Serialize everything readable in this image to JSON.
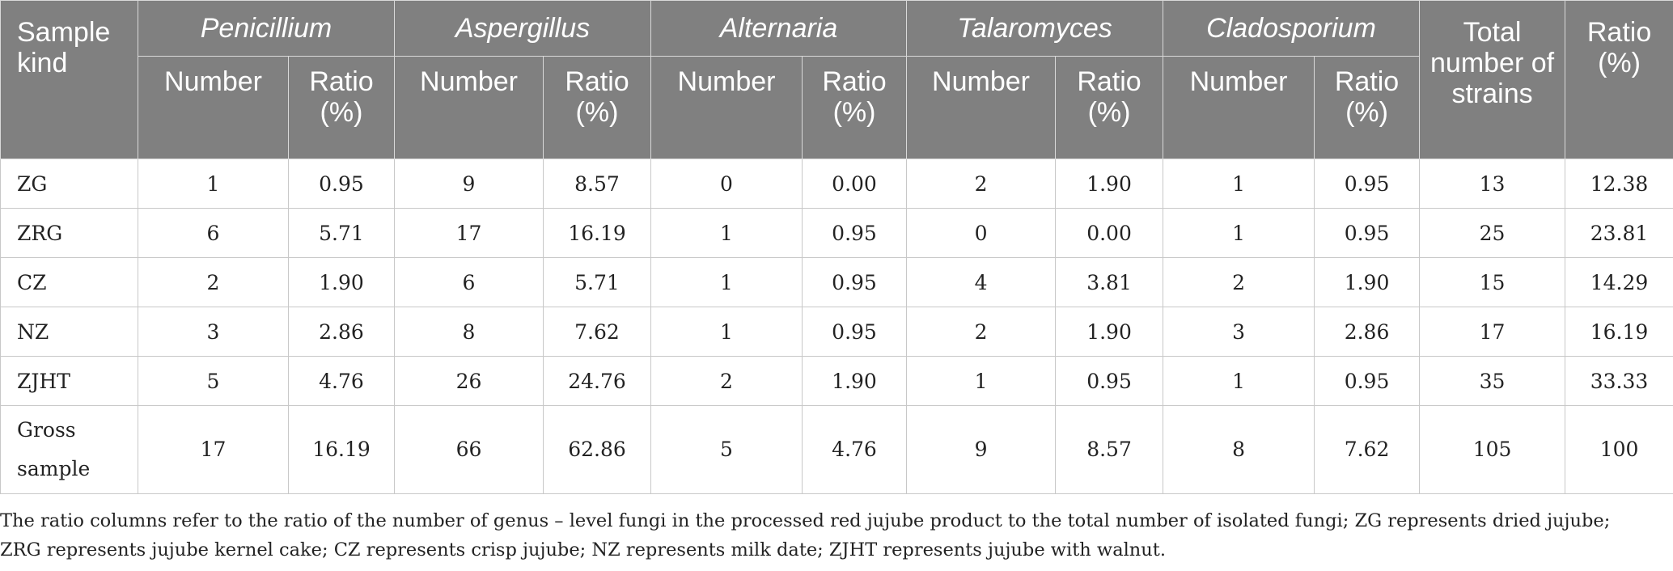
{
  "header": {
    "sample_kind": "Sample kind",
    "genera": [
      "Penicillium",
      "Aspergillus",
      "Alternaria",
      "Talaromyces",
      "Cladosporium"
    ],
    "sub_number": "Number",
    "sub_ratio": "Ratio (%)",
    "total_strains": "Total number of strains",
    "ratio": "Ratio (%)"
  },
  "rows": [
    {
      "kind": "ZG",
      "cells": [
        "1",
        "0.95",
        "9",
        "8.57",
        "0",
        "0.00",
        "2",
        "1.90",
        "1",
        "0.95",
        "13",
        "12.38"
      ]
    },
    {
      "kind": "ZRG",
      "cells": [
        "6",
        "5.71",
        "17",
        "16.19",
        "1",
        "0.95",
        "0",
        "0.00",
        "1",
        "0.95",
        "25",
        "23.81"
      ]
    },
    {
      "kind": "CZ",
      "cells": [
        "2",
        "1.90",
        "6",
        "5.71",
        "1",
        "0.95",
        "4",
        "3.81",
        "2",
        "1.90",
        "15",
        "14.29"
      ]
    },
    {
      "kind": "NZ",
      "cells": [
        "3",
        "2.86",
        "8",
        "7.62",
        "1",
        "0.95",
        "2",
        "1.90",
        "3",
        "2.86",
        "17",
        "16.19"
      ]
    },
    {
      "kind": "ZJHT",
      "cells": [
        "5",
        "4.76",
        "26",
        "24.76",
        "2",
        "1.90",
        "1",
        "0.95",
        "1",
        "0.95",
        "35",
        "33.33"
      ]
    },
    {
      "kind": "Gross sample",
      "cells": [
        "17",
        "16.19",
        "66",
        "62.86",
        "5",
        "4.76",
        "9",
        "8.57",
        "8",
        "7.62",
        "105",
        "100"
      ]
    }
  ],
  "footnote": "The ratio columns refer to the ratio of the number of genus – level fungi in the processed red jujube product to the total number of isolated fungi; ZG represents dried jujube; ZRG represents jujube kernel cake; CZ represents crisp jujube; NZ represents milk date; ZJHT represents jujube with walnut."
}
